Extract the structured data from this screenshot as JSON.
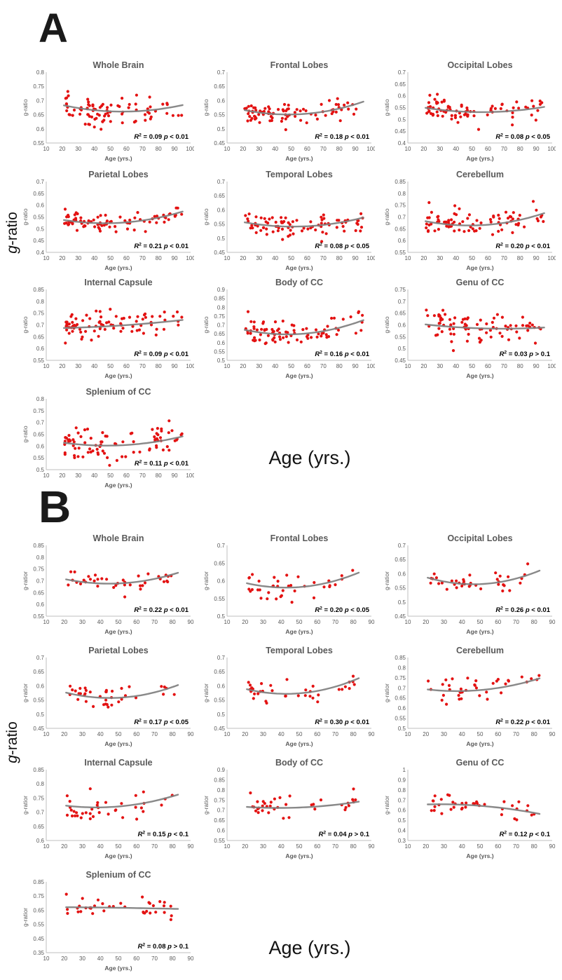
{
  "figure": {
    "panels": [
      {
        "label": "A",
        "ylabel": {
          "italic": "g",
          "rest": "-ratio"
        },
        "xlabel": "Age (yrs.)"
      },
      {
        "label": "B",
        "ylabel": {
          "italic": "g",
          "rest": "-ratio"
        },
        "xlabel": "Age (yrs.)"
      }
    ]
  },
  "colors": {
    "point": "#e31212",
    "trend": "#7f7f7f",
    "axis_line": "#bfbfbf",
    "tick_text": "#595959",
    "title_text": "#595959",
    "annotation_text": "#000000"
  },
  "chart_data": [
    {
      "panel": "A",
      "type": "scatter",
      "title": "Whole Brain",
      "xlabel": "Age (yrs.)",
      "ylabel": "g-ratio",
      "xlim": [
        10,
        100
      ],
      "xticks": [
        10,
        20,
        30,
        40,
        50,
        60,
        70,
        80,
        90,
        100
      ],
      "ylim": [
        0.55,
        0.8
      ],
      "ytick_step": 0.05,
      "x_data_range": [
        21,
        95
      ],
      "n_points": 85,
      "seed": 11,
      "jitter": 0.026,
      "trend_anchors": [
        [
          21,
          0.683
        ],
        [
          55,
          0.661
        ],
        [
          95,
          0.684
        ]
      ],
      "r2": "0.09",
      "p": "< 0.01",
      "annotation": "R² = 0.09 p < 0.01"
    },
    {
      "panel": "A",
      "type": "scatter",
      "title": "Frontal Lobes",
      "xlabel": "Age (yrs.)",
      "ylabel": "g-ratio",
      "xlim": [
        10,
        100
      ],
      "xticks": [
        10,
        20,
        30,
        40,
        50,
        60,
        70,
        80,
        90,
        100
      ],
      "ylim": [
        0.45,
        0.7
      ],
      "ytick_step": 0.05,
      "x_data_range": [
        21,
        95
      ],
      "n_points": 85,
      "seed": 12,
      "jitter": 0.019,
      "trend_anchors": [
        [
          21,
          0.566
        ],
        [
          52,
          0.551
        ],
        [
          95,
          0.596
        ]
      ],
      "r2": "0.18",
      "p": "< 0.01",
      "annotation": "R² = 0.18 p < 0.01"
    },
    {
      "panel": "A",
      "type": "scatter",
      "title": "Occipital Lobes",
      "xlabel": "Age (yrs.)",
      "ylabel": "g-ratio",
      "xlim": [
        10,
        100
      ],
      "xticks": [
        10,
        20,
        30,
        40,
        50,
        60,
        70,
        80,
        90,
        100
      ],
      "ylim": [
        0.4,
        0.7
      ],
      "ytick_step": 0.05,
      "x_data_range": [
        21,
        95
      ],
      "n_points": 85,
      "seed": 13,
      "jitter": 0.023,
      "trend_anchors": [
        [
          21,
          0.549
        ],
        [
          53,
          0.531
        ],
        [
          95,
          0.553
        ]
      ],
      "r2": "0.08",
      "p": "< 0.05",
      "annotation": "R² = 0.08 p < 0.05"
    },
    {
      "panel": "A",
      "type": "scatter",
      "title": "Parietal Lobes",
      "xlabel": "Age (yrs.)",
      "ylabel": "g-ratio",
      "xlim": [
        10,
        100
      ],
      "xticks": [
        10,
        20,
        30,
        40,
        50,
        60,
        70,
        80,
        90,
        100
      ],
      "ylim": [
        0.4,
        0.7
      ],
      "ytick_step": 0.05,
      "x_data_range": [
        21,
        95
      ],
      "n_points": 85,
      "seed": 14,
      "jitter": 0.02,
      "trend_anchors": [
        [
          21,
          0.537
        ],
        [
          52,
          0.524
        ],
        [
          95,
          0.573
        ]
      ],
      "r2": "0.21",
      "p": "< 0.01",
      "annotation": "R² = 0.21 p < 0.01"
    },
    {
      "panel": "A",
      "type": "scatter",
      "title": "Temporal Lobes",
      "xlabel": "Age (yrs.)",
      "ylabel": "g-ratio",
      "xlim": [
        10,
        100
      ],
      "xticks": [
        10,
        20,
        30,
        40,
        50,
        60,
        70,
        80,
        90,
        100
      ],
      "ylim": [
        0.45,
        0.7
      ],
      "ytick_step": 0.05,
      "x_data_range": [
        21,
        95
      ],
      "n_points": 85,
      "seed": 15,
      "jitter": 0.021,
      "trend_anchors": [
        [
          21,
          0.556
        ],
        [
          53,
          0.541
        ],
        [
          95,
          0.573
        ]
      ],
      "r2": "0.08",
      "p": "< 0.05",
      "annotation": "R² = 0.08 p < 0.05"
    },
    {
      "panel": "A",
      "type": "scatter",
      "title": "Cerebellum",
      "xlabel": "Age (yrs.)",
      "ylabel": "g-ratio",
      "xlim": [
        10,
        100
      ],
      "xticks": [
        10,
        20,
        30,
        40,
        50,
        60,
        70,
        80,
        90,
        100
      ],
      "ylim": [
        0.55,
        0.85
      ],
      "ytick_step": 0.05,
      "x_data_range": [
        21,
        95
      ],
      "n_points": 85,
      "seed": 16,
      "jitter": 0.028,
      "trend_anchors": [
        [
          21,
          0.682
        ],
        [
          50,
          0.664
        ],
        [
          95,
          0.716
        ]
      ],
      "r2": "0.20",
      "p": "< 0.01",
      "annotation": "R² = 0.20 p < 0.01"
    },
    {
      "panel": "A",
      "type": "scatter",
      "title": "Internal Capsule",
      "xlabel": "Age (yrs.)",
      "ylabel": "g-ratio",
      "xlim": [
        10,
        100
      ],
      "xticks": [
        10,
        20,
        30,
        40,
        50,
        60,
        70,
        80,
        90,
        100
      ],
      "ylim": [
        0.55,
        0.85
      ],
      "ytick_step": 0.05,
      "x_data_range": [
        21,
        95
      ],
      "n_points": 85,
      "seed": 17,
      "jitter": 0.031,
      "trend_anchors": [
        [
          21,
          0.687
        ],
        [
          55,
          0.697
        ],
        [
          95,
          0.721
        ]
      ],
      "r2": "0.09",
      "p": "< 0.01",
      "annotation": "R² = 0.09 p < 0.01"
    },
    {
      "panel": "A",
      "type": "scatter",
      "title": "Body of CC",
      "xlabel": "Age (yrs.)",
      "ylabel": "g-ratio",
      "xlim": [
        10,
        100
      ],
      "xticks": [
        10,
        20,
        30,
        40,
        50,
        60,
        70,
        80,
        90,
        100
      ],
      "ylim": [
        0.5,
        0.9
      ],
      "ytick_step": 0.05,
      "x_data_range": [
        21,
        95
      ],
      "n_points": 85,
      "seed": 18,
      "jitter": 0.036,
      "trend_anchors": [
        [
          21,
          0.672
        ],
        [
          50,
          0.647
        ],
        [
          95,
          0.727
        ]
      ],
      "r2": "0.16",
      "p": "< 0.01",
      "annotation": "R² = 0.16 p < 0.01"
    },
    {
      "panel": "A",
      "type": "scatter",
      "title": "Genu of CC",
      "xlabel": "Age (yrs.)",
      "ylabel": "g-ratio",
      "xlim": [
        10,
        100
      ],
      "xticks": [
        10,
        20,
        30,
        40,
        50,
        60,
        70,
        80,
        90,
        100
      ],
      "ylim": [
        0.45,
        0.75
      ],
      "ytick_step": 0.05,
      "x_data_range": [
        21,
        95
      ],
      "n_points": 85,
      "seed": 19,
      "jitter": 0.033,
      "trend_anchors": [
        [
          21,
          0.602
        ],
        [
          58,
          0.585
        ],
        [
          95,
          0.589
        ]
      ],
      "r2": "0.03",
      "p": "> 0.1",
      "annotation": "R² = 0.03 p > 0.1"
    },
    {
      "panel": "A",
      "type": "scatter",
      "title": "Splenium of CC",
      "xlabel": "Age (yrs.)",
      "ylabel": "g-ratio",
      "xlim": [
        10,
        100
      ],
      "xticks": [
        10,
        20,
        30,
        40,
        50,
        60,
        70,
        80,
        90,
        100
      ],
      "ylim": [
        0.5,
        0.8
      ],
      "ytick_step": 0.05,
      "x_data_range": [
        21,
        95
      ],
      "n_points": 85,
      "seed": 20,
      "jitter": 0.031,
      "trend_anchors": [
        [
          21,
          0.614
        ],
        [
          50,
          0.602
        ],
        [
          95,
          0.641
        ]
      ],
      "r2": "0.11",
      "p": "< 0.01",
      "annotation": "R² = 0.11 p < 0.01"
    },
    {
      "panel": "B",
      "type": "scatter",
      "title": "Whole Brain",
      "xlabel": "Age (yrs.)",
      "ylabel": "g-ratior",
      "xlim": [
        10,
        90
      ],
      "xticks": [
        10,
        20,
        30,
        40,
        50,
        60,
        70,
        80,
        90
      ],
      "ylim": [
        0.55,
        0.85
      ],
      "ytick_step": 0.05,
      "x_data_range": [
        21,
        83
      ],
      "n_points": 38,
      "seed": 21,
      "jitter": 0.021,
      "trend_anchors": [
        [
          21,
          0.706
        ],
        [
          47,
          0.688
        ],
        [
          83,
          0.734
        ]
      ],
      "r2": "0.22",
      "p": "< 0.01",
      "annotation": "R² = 0.22 p < 0.01"
    },
    {
      "panel": "B",
      "type": "scatter",
      "title": "Frontal Lobes",
      "xlabel": "Age (yrs.)",
      "ylabel": "g-ratior",
      "xlim": [
        10,
        90
      ],
      "xticks": [
        10,
        20,
        30,
        40,
        50,
        60,
        70,
        80,
        90
      ],
      "ylim": [
        0.5,
        0.7
      ],
      "ytick_step": 0.05,
      "x_data_range": [
        21,
        83
      ],
      "n_points": 38,
      "seed": 22,
      "jitter": 0.019,
      "trend_anchors": [
        [
          21,
          0.593
        ],
        [
          46,
          0.581
        ],
        [
          83,
          0.623
        ]
      ],
      "r2": "0.20",
      "p": "< 0.05",
      "annotation": "R² = 0.20 p < 0.05"
    },
    {
      "panel": "B",
      "type": "scatter",
      "title": "Occipital Lobes",
      "xlabel": "Age (yrs.)",
      "ylabel": "g-ratior",
      "xlim": [
        10,
        90
      ],
      "xticks": [
        10,
        20,
        30,
        40,
        50,
        60,
        70,
        80,
        90
      ],
      "ylim": [
        0.45,
        0.7
      ],
      "ytick_step": 0.05,
      "x_data_range": [
        21,
        83
      ],
      "n_points": 38,
      "seed": 23,
      "jitter": 0.018,
      "trend_anchors": [
        [
          21,
          0.586
        ],
        [
          49,
          0.563
        ],
        [
          83,
          0.611
        ]
      ],
      "r2": "0.26",
      "p": "< 0.01",
      "annotation": "R² = 0.26 p < 0.01"
    },
    {
      "panel": "B",
      "type": "scatter",
      "title": "Parietal Lobes",
      "xlabel": "Age (yrs.)",
      "ylabel": "g-ratior",
      "xlim": [
        10,
        90
      ],
      "xticks": [
        10,
        20,
        30,
        40,
        50,
        60,
        70,
        80,
        90
      ],
      "ylim": [
        0.45,
        0.7
      ],
      "ytick_step": 0.05,
      "x_data_range": [
        21,
        83
      ],
      "n_points": 38,
      "seed": 24,
      "jitter": 0.019,
      "trend_anchors": [
        [
          21,
          0.576
        ],
        [
          50,
          0.558
        ],
        [
          83,
          0.603
        ]
      ],
      "r2": "0.17",
      "p": "< 0.05",
      "annotation": "R² = 0.17 p < 0.05"
    },
    {
      "panel": "B",
      "type": "scatter",
      "title": "Temporal Lobes",
      "xlabel": "Age (yrs.)",
      "ylabel": "g-ratior",
      "xlim": [
        10,
        90
      ],
      "xticks": [
        10,
        20,
        30,
        40,
        50,
        60,
        70,
        80,
        90
      ],
      "ylim": [
        0.45,
        0.7
      ],
      "ytick_step": 0.05,
      "x_data_range": [
        21,
        83
      ],
      "n_points": 38,
      "seed": 25,
      "jitter": 0.019,
      "trend_anchors": [
        [
          21,
          0.588
        ],
        [
          45,
          0.572
        ],
        [
          83,
          0.627
        ]
      ],
      "r2": "0.30",
      "p": "< 0.01",
      "annotation": "R² = 0.30 p < 0.01"
    },
    {
      "panel": "B",
      "type": "scatter",
      "title": "Cerebellum",
      "xlabel": "Age (yrs.)",
      "ylabel": "g-ratior",
      "xlim": [
        10,
        90
      ],
      "xticks": [
        10,
        20,
        30,
        40,
        50,
        60,
        70,
        80,
        90
      ],
      "ylim": [
        0.5,
        0.85
      ],
      "ytick_step": 0.05,
      "x_data_range": [
        21,
        83
      ],
      "n_points": 38,
      "seed": 26,
      "jitter": 0.031,
      "trend_anchors": [
        [
          21,
          0.692
        ],
        [
          45,
          0.686
        ],
        [
          83,
          0.747
        ]
      ],
      "r2": "0.22",
      "p": "< 0.01",
      "annotation": "R² = 0.22 p < 0.01"
    },
    {
      "panel": "B",
      "type": "scatter",
      "title": "Internal Capsule",
      "xlabel": "Age (yrs.)",
      "ylabel": "g-ratior",
      "xlim": [
        10,
        90
      ],
      "xticks": [
        10,
        20,
        30,
        40,
        50,
        60,
        70,
        80,
        90
      ],
      "ylim": [
        0.6,
        0.85
      ],
      "ytick_step": 0.05,
      "x_data_range": [
        21,
        83
      ],
      "n_points": 38,
      "seed": 27,
      "jitter": 0.026,
      "trend_anchors": [
        [
          21,
          0.723
        ],
        [
          45,
          0.718
        ],
        [
          83,
          0.762
        ]
      ],
      "r2": "0.15",
      "p": "< 0.1",
      "annotation": "R² = 0.15 p < 0.1"
    },
    {
      "panel": "B",
      "type": "scatter",
      "title": "Body of CC",
      "xlabel": "Age (yrs.)",
      "ylabel": "g-ratior",
      "xlim": [
        10,
        90
      ],
      "xticks": [
        10,
        20,
        30,
        40,
        50,
        60,
        70,
        80,
        90
      ],
      "ylim": [
        0.55,
        0.9
      ],
      "ytick_step": 0.05,
      "x_data_range": [
        21,
        83
      ],
      "n_points": 38,
      "seed": 28,
      "jitter": 0.035,
      "trend_anchors": [
        [
          21,
          0.716
        ],
        [
          50,
          0.713
        ],
        [
          83,
          0.742
        ]
      ],
      "r2": "0.04",
      "p": "> 0.1",
      "annotation": "R² = 0.04 p > 0.1"
    },
    {
      "panel": "B",
      "type": "scatter",
      "title": "Genu of CC",
      "xlabel": "Age (yrs.)",
      "ylabel": "g-ratior",
      "xlim": [
        10,
        90
      ],
      "xticks": [
        10,
        20,
        30,
        40,
        50,
        60,
        70,
        80,
        90
      ],
      "ylim": [
        0.3,
        1
      ],
      "ytick_step": 0.1,
      "x_data_range": [
        21,
        83
      ],
      "n_points": 38,
      "seed": 29,
      "jitter": 0.05,
      "trend_anchors": [
        [
          21,
          0.657
        ],
        [
          50,
          0.643
        ],
        [
          83,
          0.563
        ]
      ],
      "r2": "0.12",
      "p": "< 0.1",
      "annotation": "R² = 0.12 p < 0.1"
    },
    {
      "panel": "B",
      "type": "scatter",
      "title": "Splenium of CC",
      "xlabel": "Age (yrs.)",
      "ylabel": "g-ratior",
      "xlim": [
        10,
        90
      ],
      "xticks": [
        10,
        20,
        30,
        40,
        50,
        60,
        70,
        80,
        90
      ],
      "ylim": [
        0.35,
        0.85
      ],
      "ytick_step": 0.1,
      "x_data_range": [
        21,
        83
      ],
      "n_points": 38,
      "seed": 30,
      "jitter": 0.036,
      "trend_anchors": [
        [
          21,
          0.671
        ],
        [
          50,
          0.667
        ],
        [
          83,
          0.659
        ]
      ],
      "r2": "0.08",
      "p": "> 0.1",
      "annotation": "R² = 0.08 p > 0.1"
    }
  ]
}
